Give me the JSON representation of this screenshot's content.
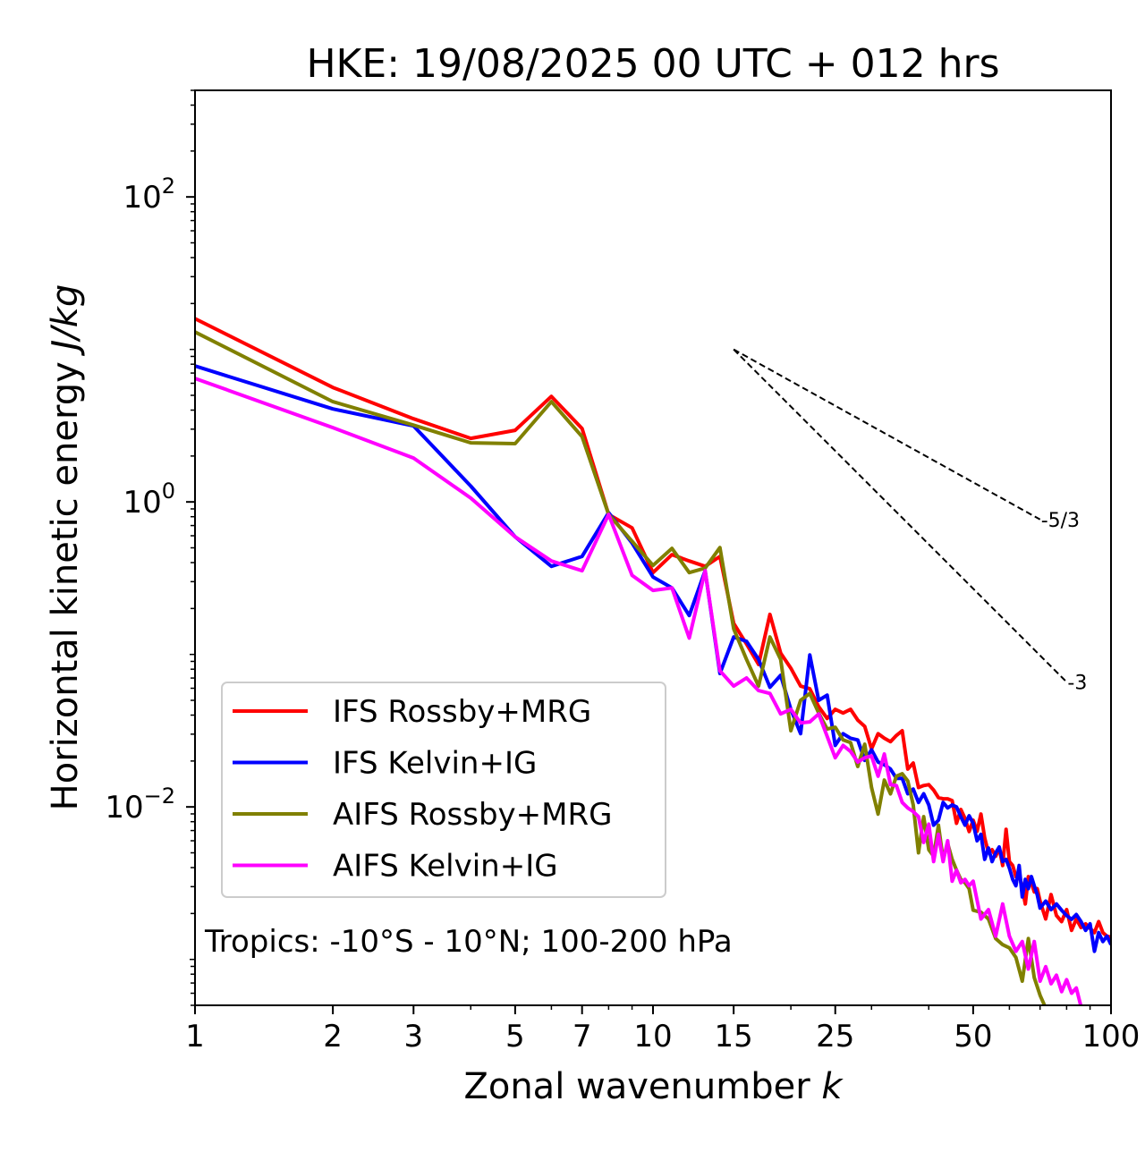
{
  "chart_data": {
    "type": "line",
    "title": "HKE: 19/08/2025 00 UTC + 012 hrs",
    "xlabel": "Zonal wavenumber",
    "xlabel_italic": "k",
    "ylabel": "Horizontal kinetic energy",
    "ylabel_italic": "J/kg",
    "xscale": "log",
    "yscale": "log",
    "xlim": [
      1,
      100
    ],
    "ylim": [
      0.0005,
      500
    ],
    "grid": false,
    "x_ticks": [
      {
        "value": 1,
        "label": "1"
      },
      {
        "value": 2,
        "label": "2"
      },
      {
        "value": 3,
        "label": "3"
      },
      {
        "value": 5,
        "label": "5"
      },
      {
        "value": 7,
        "label": "7"
      },
      {
        "value": 10,
        "label": "10"
      },
      {
        "value": 15,
        "label": "15"
      },
      {
        "value": 25,
        "label": "25"
      },
      {
        "value": 50,
        "label": "50"
      },
      {
        "value": 100,
        "label": "100"
      }
    ],
    "y_ticks": [
      {
        "value": 100,
        "base": "10",
        "exp": "2"
      },
      {
        "value": 1,
        "base": "10",
        "exp": "0"
      },
      {
        "value": 0.01,
        "base": "10",
        "exp": "−2"
      }
    ],
    "legend": {
      "placement": "lower-left",
      "entries": [
        "IFS Rossby+MRG",
        "IFS Kelvin+IG",
        "AIFS Rossby+MRG",
        "AIFS Kelvin+IG"
      ]
    },
    "annotation": "Tropics: -10°S - 10°N; 100-200 hPa",
    "reference_lines": [
      {
        "label": "-5/3",
        "slope": -1.6667,
        "k_start": 15,
        "E_start": 10,
        "k_end": 70
      },
      {
        "label": "-3",
        "slope": -3,
        "k_start": 15,
        "E_start": 10,
        "k_end": 80
      }
    ],
    "series": [
      {
        "name": "IFS Rossby+MRG",
        "color": "#ff0000",
        "k": [
          1,
          2,
          3,
          4,
          5,
          6,
          7,
          8,
          9,
          10,
          11,
          12,
          13,
          14,
          15,
          16,
          17,
          18,
          19,
          20,
          21,
          22,
          23,
          24,
          25,
          26,
          27,
          28,
          29,
          30,
          31,
          32,
          33,
          34,
          35,
          36,
          37,
          38,
          39,
          40,
          41,
          42,
          43,
          44,
          45,
          46,
          47,
          48,
          49,
          50,
          51,
          52,
          53,
          54,
          55,
          56,
          57,
          58,
          59,
          60,
          61,
          62,
          63,
          64,
          65,
          66,
          67,
          68,
          69,
          70,
          72,
          74,
          76,
          78,
          80,
          82,
          84,
          86,
          88,
          90,
          92,
          94,
          96,
          98,
          100
        ],
        "values": [
          15.9,
          5.63,
          3.51,
          2.61,
          2.95,
          4.92,
          3.03,
          0.828,
          0.676,
          0.344,
          0.451,
          0.41,
          0.378,
          0.439,
          0.16,
          0.117,
          0.0859,
          0.183,
          0.102,
          0.0812,
          0.062,
          0.0595,
          0.0454,
          0.038,
          0.0436,
          0.0413,
          0.0436,
          0.0371,
          0.0337,
          0.024,
          0.0302,
          0.0282,
          0.0268,
          0.0294,
          0.0316,
          0.0177,
          0.0194,
          0.0134,
          0.0138,
          0.014,
          0.0129,
          0.0115,
          0.0113,
          0.0113,
          0.011,
          0.00781,
          0.00962,
          0.0084,
          0.0069,
          0.00818,
          0.00692,
          0.00897,
          0.00626,
          0.005,
          0.00524,
          0.00475,
          0.00538,
          0.00413,
          0.00712,
          0.00438,
          0.00413,
          0.00349,
          0.00363,
          0.00291,
          0.00231,
          0.00349,
          0.00318,
          0.00277,
          0.00291,
          0.00241,
          0.00184,
          0.00266,
          0.00194,
          0.00177,
          0.00212,
          0.00155,
          0.00184,
          0.00162,
          0.00171,
          0.0016,
          0.0015,
          0.00177,
          0.0015,
          0.00142,
          0.0014
        ]
      },
      {
        "name": "IFS Kelvin+IG",
        "color": "#0000ff",
        "k": [
          1,
          2,
          3,
          4,
          5,
          6,
          7,
          8,
          9,
          10,
          11,
          12,
          13,
          14,
          15,
          16,
          17,
          18,
          19,
          20,
          21,
          22,
          23,
          24,
          25,
          26,
          27,
          28,
          29,
          30,
          31,
          32,
          33,
          34,
          35,
          36,
          37,
          38,
          39,
          40,
          41,
          42,
          43,
          44,
          45,
          46,
          47,
          48,
          49,
          50,
          51,
          52,
          53,
          54,
          55,
          56,
          57,
          58,
          59,
          60,
          61,
          62,
          63,
          64,
          65,
          66,
          67,
          68,
          69,
          70,
          72,
          74,
          76,
          78,
          80,
          82,
          84,
          86,
          88,
          90,
          92,
          94,
          96,
          98,
          100
        ],
        "values": [
          7.79,
          4.07,
          3.15,
          1.27,
          0.59,
          0.378,
          0.439,
          0.85,
          0.537,
          0.322,
          0.273,
          0.18,
          0.354,
          0.075,
          0.13,
          0.122,
          0.0928,
          0.0609,
          0.073,
          0.0436,
          0.0302,
          0.0993,
          0.05,
          0.0541,
          0.0253,
          0.0302,
          0.0282,
          0.0275,
          0.0202,
          0.0237,
          0.0197,
          0.0189,
          0.0177,
          0.0154,
          0.0154,
          0.0122,
          0.0131,
          0.0107,
          0.0122,
          0.0103,
          0.00759,
          0.00818,
          0.0107,
          0.00985,
          0.0103,
          0.01,
          0.00863,
          0.00759,
          0.00875,
          0.00781,
          0.006,
          0.00661,
          0.00453,
          0.00538,
          0.00438,
          0.005,
          0.00546,
          0.00438,
          0.00453,
          0.00397,
          0.00335,
          0.00304,
          0.00413,
          0.00257,
          0.00335,
          0.00291,
          0.00349,
          0.00304,
          0.00266,
          0.00217,
          0.00241,
          0.00212,
          0.00231,
          0.0021,
          0.00194,
          0.00183,
          0.00197,
          0.00177,
          0.00155,
          0.00171,
          0.00113,
          0.0015,
          0.00131,
          0.00142,
          0.00125
        ]
      },
      {
        "name": "AIFS Rossby+MRG",
        "color": "#808000",
        "k": [
          1,
          2,
          3,
          4,
          5,
          6,
          7,
          8,
          9,
          10,
          11,
          12,
          13,
          14,
          15,
          16,
          17,
          18,
          19,
          20,
          21,
          22,
          23,
          24,
          25,
          26,
          27,
          28,
          29,
          30,
          31,
          32,
          33,
          34,
          35,
          36,
          37,
          38,
          39,
          40,
          41,
          42,
          43,
          44,
          45,
          46,
          47,
          48,
          49,
          50,
          52,
          54,
          56,
          58,
          60,
          62,
          64,
          66,
          68,
          70,
          72
        ],
        "values": [
          13,
          4.54,
          3.19,
          2.44,
          2.41,
          4.54,
          2.68,
          0.828,
          0.552,
          0.383,
          0.496,
          0.344,
          0.368,
          0.502,
          0.147,
          0.0928,
          0.062,
          0.13,
          0.0928,
          0.0316,
          0.05,
          0.0555,
          0.0413,
          0.0324,
          0.0333,
          0.0275,
          0.0264,
          0.0184,
          0.0258,
          0.0134,
          0.00897,
          0.015,
          0.0122,
          0.0159,
          0.0165,
          0.0148,
          0.0103,
          0.005,
          0.00863,
          0.00524,
          0.00475,
          0.00759,
          0.00453,
          0.00576,
          0.00453,
          0.00385,
          0.00335,
          0.00318,
          0.00291,
          0.0021,
          0.00204,
          0.00184,
          0.00137,
          0.00125,
          0.00119,
          0.00103,
          0.00072,
          0.00137,
          0.00076,
          0.000582,
          0.00048
        ]
      },
      {
        "name": "AIFS Kelvin+IG",
        "color": "#ff00ff",
        "k": [
          1,
          2,
          3,
          4,
          5,
          6,
          7,
          8,
          9,
          10,
          11,
          12,
          13,
          14,
          15,
          16,
          17,
          18,
          19,
          20,
          21,
          22,
          23,
          24,
          25,
          26,
          27,
          28,
          29,
          30,
          31,
          32,
          33,
          34,
          35,
          36,
          37,
          38,
          39,
          40,
          41,
          42,
          43,
          44,
          45,
          46,
          47,
          48,
          49,
          50,
          52,
          54,
          56,
          58,
          60,
          62,
          64,
          66,
          68,
          70,
          72,
          74,
          76,
          78,
          80,
          82,
          84,
          86
        ],
        "values": [
          6.45,
          3.07,
          1.94,
          1.06,
          0.59,
          0.41,
          0.354,
          0.828,
          0.33,
          0.263,
          0.273,
          0.128,
          0.354,
          0.0782,
          0.062,
          0.0701,
          0.0579,
          0.0555,
          0.0407,
          0.0436,
          0.0356,
          0.0361,
          0.0407,
          0.029,
          0.021,
          0.0253,
          0.0231,
          0.0197,
          0.021,
          0.0216,
          0.0159,
          0.0222,
          0.014,
          0.0138,
          0.0107,
          0.00985,
          0.00932,
          0.00863,
          0.00585,
          0.00771,
          0.00438,
          0.00661,
          0.00438,
          0.006,
          0.00326,
          0.00385,
          0.00318,
          0.00335,
          0.00304,
          0.00326,
          0.00184,
          0.00212,
          0.00142,
          0.00231,
          0.00142,
          0.00113,
          0.00131,
          0.000865,
          0.00131,
          0.00072,
          0.000896,
          0.000692,
          0.000788,
          0.000615,
          0.000737,
          0.0006,
          0.00065,
          0.00049
        ]
      }
    ]
  }
}
